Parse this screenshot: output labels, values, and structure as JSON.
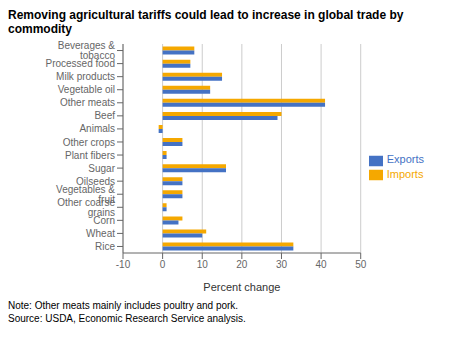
{
  "chart_data": {
    "type": "bar",
    "orientation": "horizontal",
    "title": "Removing agricultural tariffs could lead to increase in global trade by commodity",
    "categories": [
      "Beverages & tobacco",
      "Processed food",
      "Milk products",
      "Vegetable oil",
      "Other meats",
      "Beef",
      "Animals",
      "Other crops",
      "Plant fibers",
      "Sugar",
      "Oilseeds",
      "Vegetables & fruit",
      "Other coarse grains",
      "Corn",
      "Wheat",
      "Rice"
    ],
    "series": [
      {
        "name": "Imports",
        "color": "#F5A800",
        "values": [
          8,
          7,
          15,
          12,
          41,
          30,
          -1,
          5,
          1,
          16,
          5,
          5,
          1,
          5,
          11,
          33
        ]
      },
      {
        "name": "Exports",
        "color": "#4472C4",
        "values": [
          8,
          7,
          15,
          12,
          41,
          29,
          -1,
          5,
          1,
          16,
          5,
          5,
          1,
          4,
          10,
          33
        ]
      }
    ],
    "xlabel": "Percent change",
    "xlim": [
      -10,
      50
    ],
    "xticks": [
      -10,
      0,
      10,
      20,
      30,
      40,
      50
    ],
    "grid": "x",
    "legend": "right",
    "annotations": [
      "Note: Other meats mainly includes poultry and pork.",
      "Source: USDA, Economic Research Service analysis."
    ]
  }
}
